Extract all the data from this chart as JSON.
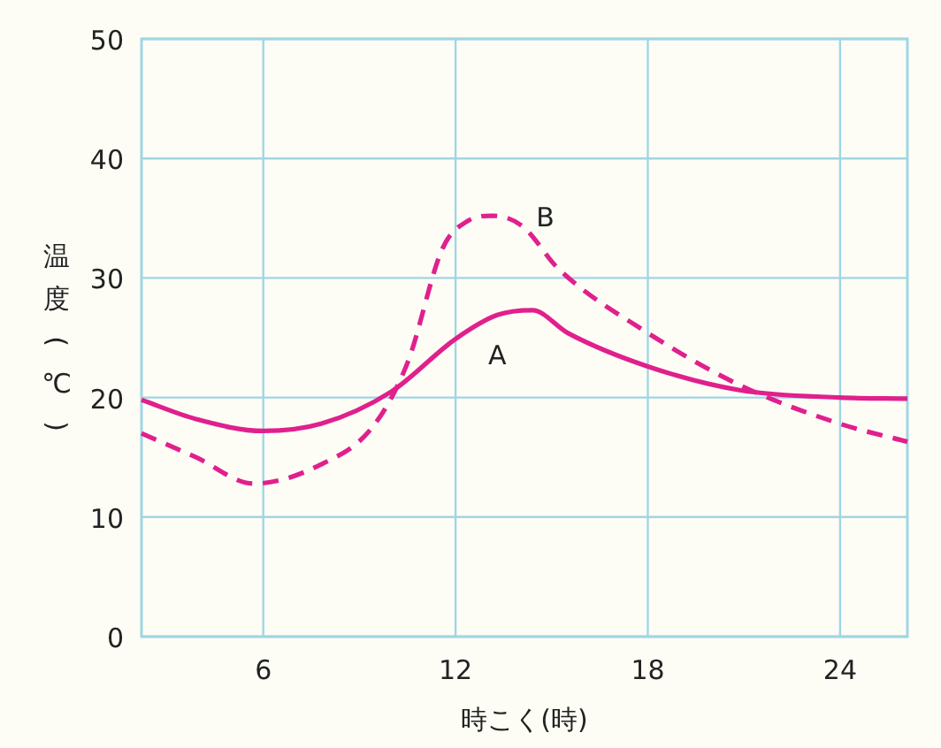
{
  "chart_data": {
    "type": "line",
    "xlabel": "時こく(時)",
    "ylabel": "温度(℃)",
    "xlim": [
      2.2,
      26.1
    ],
    "xticks": [
      6,
      12,
      18,
      24
    ],
    "ylim": [
      0,
      50
    ],
    "yticks": [
      0,
      10,
      20,
      30,
      40,
      50
    ],
    "grid": true,
    "marker": "none",
    "series": [
      {
        "name": "A",
        "color": "#e0208c",
        "line_style": "solid",
        "x": [
          2.2,
          3.9,
          6,
          7.8,
          10,
          12,
          13.3,
          14.4,
          15.5,
          18,
          20.9,
          24,
          26.1
        ],
        "values": [
          19.8,
          18.2,
          17.2,
          17.8,
          20.5,
          24.9,
          26.9,
          27.3,
          25.4,
          22.6,
          20.6,
          20.0,
          19.9
        ]
      },
      {
        "name": "B",
        "color": "#e0208c",
        "line_style": "dashed",
        "x": [
          2.2,
          3.9,
          5.7,
          7.8,
          9.4,
          10.5,
          11.6,
          12.4,
          13.2,
          14.1,
          15.2,
          18,
          20.9,
          24,
          26.1
        ],
        "values": [
          17.0,
          15.0,
          12.8,
          14.4,
          17.5,
          22.9,
          32.5,
          34.8,
          35.2,
          34.3,
          30.8,
          25.4,
          21.0,
          17.8,
          16.3
        ]
      }
    ]
  }
}
